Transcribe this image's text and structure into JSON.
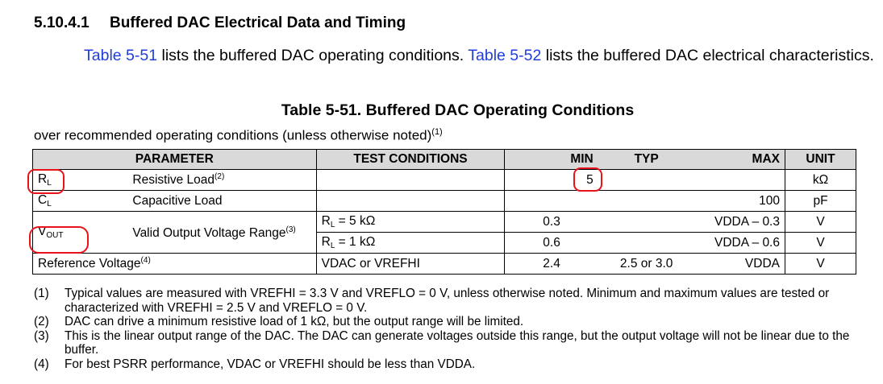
{
  "section": {
    "number": "5.10.4.1",
    "title": "Buffered DAC Electrical Data and Timing"
  },
  "intro": {
    "link1": "Table 5-51",
    "text1": " lists the buffered DAC operating conditions. ",
    "link2": "Table 5-52",
    "text2": " lists the buffered DAC electrical characteristics."
  },
  "table_title": "Table 5-51. Buffered DAC Operating Conditions",
  "conditions": {
    "text": "over recommended operating conditions (unless otherwise noted)",
    "ref": "(1)"
  },
  "headers": {
    "parameter": "PARAMETER",
    "test_conditions": "TEST CONDITIONS",
    "min": "MIN",
    "typ": "TYP",
    "max": "MAX",
    "unit": "UNIT"
  },
  "rows": {
    "rl": {
      "sym": "R",
      "sub": "L",
      "desc": "Resistive Load",
      "ref": "(2)",
      "test": "",
      "min": "5",
      "typ": "",
      "max": "",
      "unit": "kΩ"
    },
    "cl": {
      "sym": "C",
      "sub": "L",
      "desc": "Capacitive Load",
      "test": "",
      "min": "",
      "typ": "",
      "max": "100",
      "unit": "pF"
    },
    "vout": {
      "sym": "V",
      "sub": "OUT",
      "desc": "Valid Output Voltage Range",
      "ref": "(3)",
      "r1": {
        "test_sym": "R",
        "test_sub": "L",
        "test_val": " = 5 kΩ",
        "min": "0.3",
        "max": "VDDA – 0.3",
        "unit": "V"
      },
      "r2": {
        "test_sym": "R",
        "test_sub": "L",
        "test_val": " = 1 kΩ",
        "min": "0.6",
        "max": "VDDA – 0.6",
        "unit": "V"
      }
    },
    "vref": {
      "desc": "Reference Voltage",
      "ref": "(4)",
      "test": "VDAC or VREFHI",
      "min": "2.4",
      "typ": "2.5 or 3.0",
      "max": "VDDA",
      "unit": "V"
    }
  },
  "notes": [
    {
      "n": "(1)",
      "text": "Typical values are measured with VREFHI = 3.3 V and VREFLO = 0 V, unless otherwise noted. Minimum and maximum values are tested or characterized with VREFHI = 2.5 V and VREFLO = 0 V."
    },
    {
      "n": "(2)",
      "text": "DAC can drive a minimum resistive load of 1 kΩ, but the output range will be limited."
    },
    {
      "n": "(3)",
      "text": "This is the linear output range of the DAC. The DAC can generate voltages outside this range, but the output voltage will not be linear due to the buffer."
    },
    {
      "n": "(4)",
      "text": "For best PSRR performance, VDAC or VREFHI should be less than VDDA."
    }
  ],
  "annotation_color": "#e8121a"
}
